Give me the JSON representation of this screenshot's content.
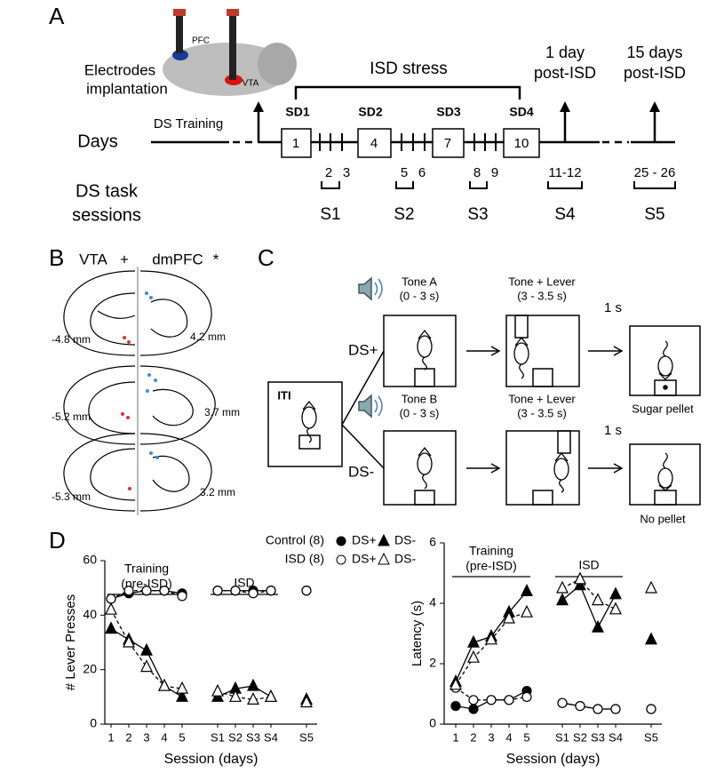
{
  "panel_labels": [
    "A",
    "B",
    "C",
    "D"
  ],
  "panel_a": {
    "implant": [
      "Electrodes",
      "implantation"
    ],
    "brain_regions": [
      "PFC",
      "VTA"
    ],
    "stress": "ISD stress",
    "training": "DS Training",
    "days_label": "Days",
    "sd": [
      "SD1",
      "SD2",
      "SD3",
      "SD4"
    ],
    "day_boxes": [
      "1",
      "4",
      "7",
      "10"
    ],
    "post": [
      [
        "1 day",
        "post-ISD"
      ],
      [
        "15 days",
        "post-ISD"
      ]
    ],
    "session_days": [
      "2",
      "3",
      "5",
      "6",
      "8",
      "9",
      "11-12",
      "25 - 26"
    ],
    "sessions": [
      "S1",
      "S2",
      "S3",
      "S4",
      "S5"
    ],
    "sessions_label": [
      "DS task",
      "sessions"
    ]
  },
  "panel_b": {
    "regions": [
      "VTA",
      "+",
      "dmPFC",
      "*"
    ],
    "left_mm": [
      "-4.8 mm",
      "-5.2 mm",
      "-5.3 mm"
    ],
    "right_mm": [
      "4.2 mm",
      "3.7 mm",
      "3.2 mm"
    ]
  },
  "panel_c": {
    "iti": "ITI",
    "trials": [
      {
        "name": "DS+",
        "tone": [
          "Tone A",
          "(0 - 3 s)"
        ],
        "lever": [
          "Tone + Lever",
          "(3 - 3.5 s)"
        ],
        "delay": "1 s",
        "outcome": "Sugar pellet"
      },
      {
        "name": "DS-",
        "tone": [
          "Tone B",
          "(0 - 3 s)"
        ],
        "lever": [
          "Tone + Lever",
          "(3 - 3.5 s)"
        ],
        "delay": "1 s",
        "outcome": "No pellet"
      }
    ]
  },
  "legend": {
    "rows": [
      {
        "group": "Control (8)",
        "entries": [
          "DS+",
          "DS-"
        ]
      },
      {
        "group": "ISD (8)",
        "entries": [
          "DS+",
          "DS-"
        ]
      }
    ]
  },
  "chart_data": [
    {
      "type": "line",
      "y_label": "# Lever Presses",
      "x_label": "Session (days)",
      "annotations": [
        "Training",
        "(pre-ISD)",
        "ISD"
      ],
      "categories": [
        "1",
        "2",
        "3",
        "4",
        "5",
        null,
        "S1",
        "S2",
        "S3",
        "S4",
        null,
        "S5"
      ],
      "ylim": [
        0,
        60
      ],
      "yticks": [
        0,
        20,
        40,
        60
      ],
      "series": [
        {
          "color": "#000000",
          "marker": "circle",
          "filled": true,
          "dash": false,
          "values": [
            46,
            48,
            49,
            49,
            48,
            null,
            49,
            49,
            49,
            49,
            null,
            49
          ]
        },
        {
          "color": "#000000",
          "marker": "triangle",
          "filled": true,
          "dash": false,
          "values": [
            35,
            31,
            27,
            14,
            10,
            null,
            10,
            13,
            14,
            10,
            null,
            9
          ]
        },
        {
          "color": "#000000",
          "marker": "circle",
          "filled": false,
          "dash": true,
          "values": [
            46,
            49,
            49,
            49,
            47,
            null,
            49,
            49,
            48,
            49,
            null,
            49
          ]
        },
        {
          "color": "#000000",
          "marker": "triangle",
          "filled": false,
          "dash": true,
          "values": [
            42,
            30,
            21,
            14,
            13,
            null,
            12,
            10,
            9,
            10,
            null,
            8
          ]
        }
      ]
    },
    {
      "type": "line",
      "y_label": "Latency (s)",
      "x_label": "Session (days)",
      "annotations": [
        "Training",
        "(pre-ISD)",
        "ISD"
      ],
      "categories": [
        "1",
        "2",
        "3",
        "4",
        "5",
        null,
        "S1",
        "S2",
        "S3",
        "S4",
        null,
        "S5"
      ],
      "ylim": [
        0,
        6
      ],
      "yticks": [
        0,
        2,
        4,
        6
      ],
      "series": [
        {
          "color": "#000000",
          "marker": "circle",
          "filled": true,
          "dash": false,
          "values": [
            0.6,
            0.5,
            0.8,
            0.8,
            1.1,
            null,
            0.7,
            0.6,
            0.5,
            0.5,
            null,
            0.5
          ]
        },
        {
          "color": "#000000",
          "marker": "triangle",
          "filled": true,
          "dash": false,
          "values": [
            1.4,
            2.7,
            2.9,
            3.7,
            4.4,
            null,
            4.1,
            4.6,
            3.2,
            4.3,
            null,
            2.8
          ]
        },
        {
          "color": "#000000",
          "marker": "circle",
          "filled": false,
          "dash": true,
          "values": [
            1.2,
            0.8,
            0.8,
            0.8,
            0.9,
            null,
            0.7,
            0.6,
            0.5,
            0.5,
            null,
            0.5
          ]
        },
        {
          "color": "#000000",
          "marker": "triangle",
          "filled": false,
          "dash": true,
          "values": [
            1.3,
            2.2,
            2.8,
            3.5,
            3.7,
            null,
            4.5,
            4.8,
            4.1,
            3.8,
            null,
            4.5
          ]
        }
      ]
    }
  ]
}
